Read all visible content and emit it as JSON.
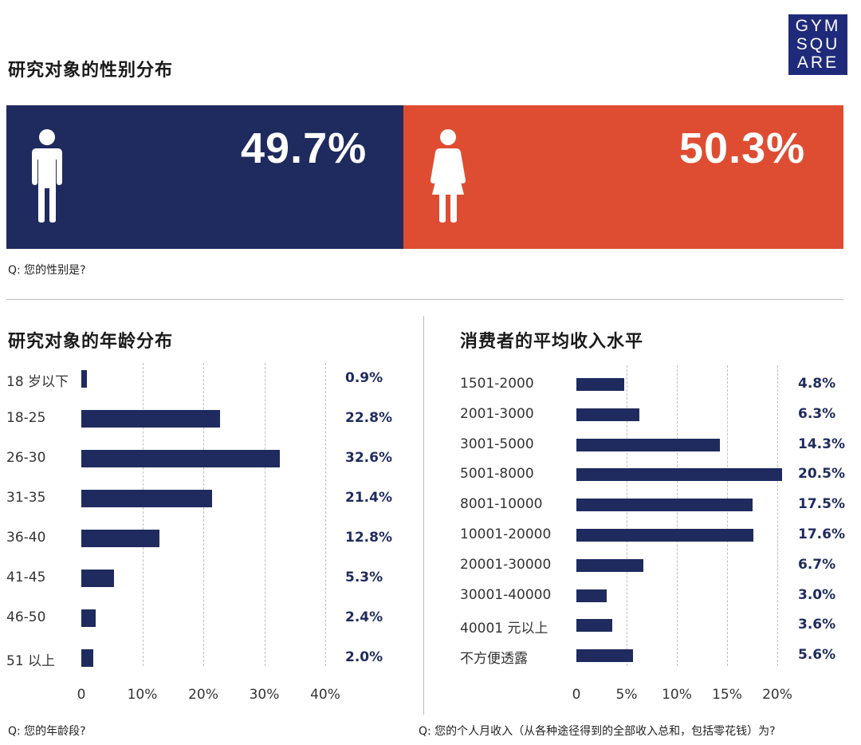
{
  "logo": {
    "lines": [
      "GYM",
      "SQU",
      "ARE"
    ]
  },
  "gender": {
    "title": "研究对象的性别分布",
    "male": {
      "label": "49.7%",
      "value": 49.7,
      "color": "#1f2b5e"
    },
    "female": {
      "label": "50.3%",
      "value": 50.3,
      "color": "#de4d32"
    },
    "question": "Q: 您的性别是?"
  },
  "age": {
    "title": "研究对象的年龄分布",
    "question": "Q: 您的年龄段?"
  },
  "income": {
    "title": "消费者的平均收入水平",
    "question": "Q: 您的个人月收入（从各种途径得到的全部收入总和，包括零花钱）为?"
  },
  "chart_data": [
    {
      "type": "bar",
      "orientation": "horizontal",
      "title": "研究对象的年龄分布",
      "categories": [
        "18 岁以下",
        "18-25",
        "26-30",
        "31-35",
        "36-40",
        "41-45",
        "46-50",
        "51 以上"
      ],
      "values": [
        0.9,
        22.8,
        32.6,
        21.4,
        12.8,
        5.3,
        2.4,
        2.0
      ],
      "value_labels": [
        "0.9%",
        "22.8%",
        "32.6%",
        "21.4%",
        "12.8%",
        "5.3%",
        "2.4%",
        "2.0%"
      ],
      "xlim": [
        0,
        40
      ],
      "xticks": [
        "0",
        "10%",
        "20%",
        "30%",
        "40%"
      ],
      "grid": true
    },
    {
      "type": "bar",
      "orientation": "horizontal",
      "title": "消费者的平均收入水平",
      "categories": [
        "1501-2000",
        "2001-3000",
        "3001-5000",
        "5001-8000",
        "8001-10000",
        "10001-20000",
        "20001-30000",
        "30001-40000",
        "40001 元以上",
        "不方便透露"
      ],
      "values": [
        4.8,
        6.3,
        14.3,
        20.5,
        17.5,
        17.6,
        6.7,
        3.0,
        3.6,
        5.6
      ],
      "value_labels": [
        "4.8%",
        "6.3%",
        "14.3%",
        "20.5%",
        "17.5%",
        "17.6%",
        "6.7%",
        "3.0%",
        "3.6%",
        "5.6%"
      ],
      "xlim": [
        0,
        20
      ],
      "xticks": [
        "0",
        "5%",
        "10%",
        "15%",
        "20%"
      ],
      "grid": true
    }
  ]
}
